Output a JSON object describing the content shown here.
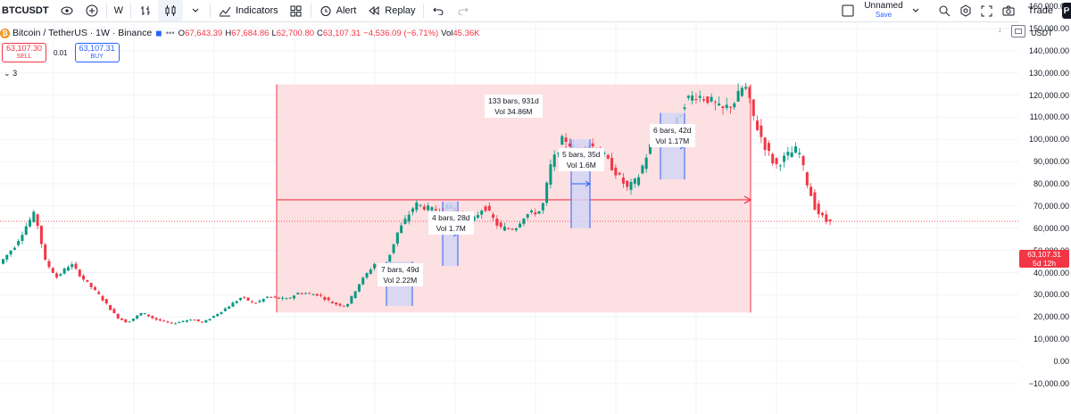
{
  "toolbar": {
    "symbol": "BTCUSDT",
    "interval": "W",
    "indicators": "Indicators",
    "alert": "Alert",
    "replay": "Replay",
    "layout_name": "Unnamed",
    "save_label": "Save",
    "trade": "Trade",
    "profile_initial": "P"
  },
  "legend": {
    "title": "Bitcoin / TetherUS · 1W · Binance",
    "open_label": "O",
    "open": "67,643.39",
    "high_label": "H",
    "high": "67,684.86",
    "low_label": "L",
    "low": "62,700.80",
    "close_label": "C",
    "close": "63,107.31",
    "change": "−4,536.09 (−6.71%)",
    "vol_label": "Vol",
    "vol": "45.36K"
  },
  "trade_panel": {
    "sell_price": "63,107.30",
    "sell_label": "SELL",
    "spread": "0.01",
    "buy_price": "63,107.31",
    "buy_label": "BUY",
    "indicators_count": "3"
  },
  "currency": "USDT",
  "price_scale": {
    "ticks": [
      "160,000.00",
      "150,000.00",
      "140,000.00",
      "130,000.00",
      "120,000.00",
      "110,000.00",
      "100,000.00",
      "90,000.00",
      "80,000.00",
      "70,000.00",
      "60,000.00",
      "50,000.00",
      "40,000.00",
      "30,000.00",
      "20,000.00",
      "10,000.00",
      "0.00",
      "−10,000.00"
    ],
    "last_price": "63,107.31",
    "countdown": "5d 12h"
  },
  "measurements": [
    {
      "bars": "133 bars, 931d",
      "vol": "Vol 34.86M"
    },
    {
      "bars": "7 bars, 49d",
      "vol": "Vol 2.22M"
    },
    {
      "bars": "4 bars, 28d",
      "vol": "Vol 1.7M"
    },
    {
      "bars": "5 bars, 35d",
      "vol": "Vol 1.6M"
    },
    {
      "bars": "6 bars, 42d",
      "vol": "Vol 1.17M"
    }
  ],
  "colors": {
    "up": "#089981",
    "down": "#f23645",
    "range_fill": "#fde0e2",
    "sub_fill": "#d3d5f5",
    "sub_line": "#2962ff"
  },
  "chart_data": {
    "type": "candlestick",
    "price_anchors": [
      [
        0,
        44000
      ],
      [
        12,
        52000
      ],
      [
        22,
        62000
      ],
      [
        28,
        67000
      ],
      [
        36,
        45000
      ],
      [
        45,
        38000
      ],
      [
        56,
        44000
      ],
      [
        66,
        37000
      ],
      [
        78,
        30000
      ],
      [
        92,
        20000
      ],
      [
        100,
        17500
      ],
      [
        112,
        22000
      ],
      [
        122,
        19000
      ],
      [
        135,
        17000
      ],
      [
        150,
        19000
      ],
      [
        160,
        17500
      ],
      [
        175,
        23000
      ],
      [
        190,
        29000
      ],
      [
        200,
        26000
      ],
      [
        210,
        29000
      ],
      [
        225,
        28000
      ],
      [
        235,
        31000
      ],
      [
        250,
        30000
      ],
      [
        262,
        26000
      ],
      [
        272,
        25000
      ],
      [
        282,
        35000
      ],
      [
        294,
        44000
      ],
      [
        302,
        42000
      ],
      [
        312,
        58000
      ],
      [
        326,
        71000
      ],
      [
        340,
        68000
      ],
      [
        354,
        70000
      ],
      [
        366,
        60000
      ],
      [
        380,
        70000
      ],
      [
        392,
        60000
      ],
      [
        404,
        60000
      ],
      [
        412,
        66000
      ],
      [
        425,
        68000
      ],
      [
        432,
        88000
      ],
      [
        442,
        101000
      ],
      [
        452,
        95000
      ],
      [
        462,
        98000
      ],
      [
        472,
        94000
      ],
      [
        482,
        86000
      ],
      [
        492,
        78000
      ],
      [
        500,
        82000
      ],
      [
        510,
        97000
      ],
      [
        518,
        101000
      ],
      [
        528,
        104000
      ],
      [
        538,
        118000
      ],
      [
        546,
        120000
      ],
      [
        556,
        118000
      ],
      [
        566,
        113000
      ],
      [
        576,
        117000
      ],
      [
        584,
        125000
      ],
      [
        592,
        108000
      ],
      [
        600,
        97000
      ],
      [
        608,
        88000
      ],
      [
        618,
        93000
      ],
      [
        626,
        96000
      ],
      [
        632,
        82000
      ],
      [
        640,
        68000
      ],
      [
        648,
        63100
      ]
    ]
  }
}
